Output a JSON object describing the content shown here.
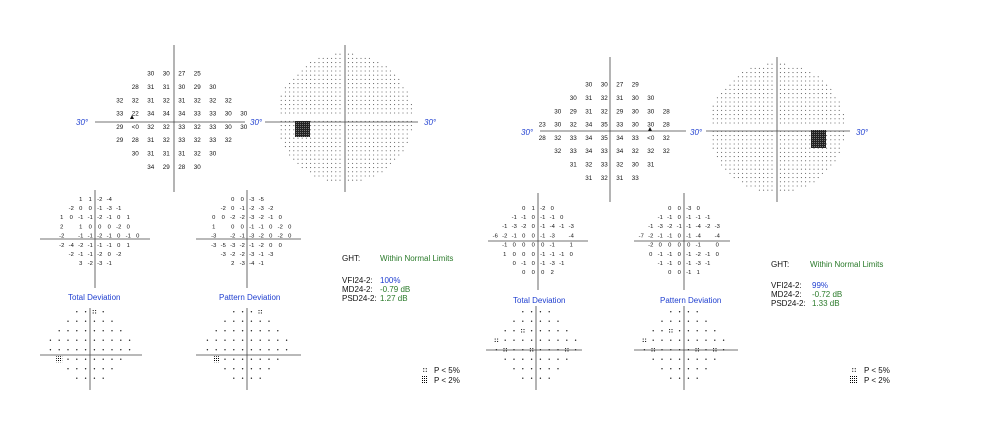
{
  "axis_label": "30°",
  "legend": {
    "p5": "P < 5%",
    "p2": "P < 2%"
  },
  "left": {
    "threshold": [
      [
        "",
        "",
        "",
        "30",
        "30",
        "27",
        "25",
        "",
        "",
        ""
      ],
      [
        "",
        "",
        "28",
        "31",
        "31",
        "30",
        "29",
        "30",
        "",
        ""
      ],
      [
        "",
        "32",
        "32",
        "31",
        "32",
        "31",
        "32",
        "32",
        "32",
        ""
      ],
      [
        "",
        "33",
        "22",
        "34",
        "34",
        "34",
        "33",
        "33",
        "30",
        "30"
      ],
      [
        "",
        "29",
        "<0",
        "32",
        "32",
        "33",
        "32",
        "33",
        "30",
        "30"
      ],
      [
        "",
        "29",
        "28",
        "31",
        "32",
        "33",
        "32",
        "33",
        "32",
        ""
      ],
      [
        "",
        "",
        "30",
        "31",
        "31",
        "31",
        "32",
        "30",
        "",
        ""
      ],
      [
        "",
        "",
        "",
        "34",
        "29",
        "28",
        "30",
        "",
        "",
        ""
      ]
    ],
    "total_dev": [
      [
        "",
        "",
        "",
        "1",
        "1",
        "-2",
        "-4",
        "",
        "",
        ""
      ],
      [
        "",
        "",
        "-2",
        "0",
        "0",
        "-1",
        "-3",
        "-1",
        "",
        ""
      ],
      [
        "",
        "1",
        "0",
        "-1",
        "-1",
        "-2",
        "-1",
        "0",
        "1",
        ""
      ],
      [
        "",
        "2",
        "",
        "1",
        "0",
        "0",
        "0",
        "-2",
        "0",
        ""
      ],
      [
        "",
        "-2",
        "",
        "-1",
        "-1",
        "-2",
        "-1",
        "0",
        "-1",
        "0"
      ],
      [
        "",
        "-2",
        "-4",
        "-2",
        "-1",
        "-1",
        "-1",
        "0",
        "1",
        ""
      ],
      [
        "",
        "",
        "-2",
        "-1",
        "-1",
        "-2",
        "0",
        "-2",
        "",
        ""
      ],
      [
        "",
        "",
        "",
        "3",
        "-2",
        "-3",
        "-1",
        "",
        "",
        ""
      ]
    ],
    "pattern_dev": [
      [
        "",
        "",
        "",
        "0",
        "0",
        "-3",
        "-5",
        "",
        "",
        ""
      ],
      [
        "",
        "",
        "-2",
        "0",
        "-1",
        "-2",
        "-3",
        "-2",
        "",
        ""
      ],
      [
        "",
        "0",
        "0",
        "-2",
        "-2",
        "-3",
        "-2",
        "-1",
        "0",
        ""
      ],
      [
        "",
        "1",
        "",
        "0",
        "0",
        "-1",
        "-1",
        "0",
        "-2",
        "0"
      ],
      [
        "",
        "-3",
        "",
        "-2",
        "-1",
        "-3",
        "-2",
        "0",
        "-2",
        "0"
      ],
      [
        "",
        "-3",
        "-5",
        "-3",
        "-2",
        "-1",
        "-2",
        "0",
        "0",
        ""
      ],
      [
        "",
        "",
        "-3",
        "-2",
        "-2",
        "-3",
        "-1",
        "-3",
        "",
        ""
      ],
      [
        "",
        "",
        "",
        "2",
        "-3",
        "-4",
        "-1",
        "",
        "",
        ""
      ]
    ],
    "td_title": "Total Deviation",
    "pd_title": "Pattern Deviation",
    "ght_label": "GHT:",
    "ght_value": "Within Normal Limits",
    "vfi_label": "VFI24-2:",
    "vfi_value": "100%",
    "md_label": "MD24-2:",
    "md_value": "-0.79 dB",
    "psd_label": "PSD24-2:",
    "psd_value": "1.27 dB"
  },
  "right": {
    "threshold": [
      [
        "",
        "",
        "",
        "30",
        "30",
        "27",
        "29",
        "",
        "",
        ""
      ],
      [
        "",
        "",
        "30",
        "31",
        "32",
        "31",
        "30",
        "30",
        "",
        ""
      ],
      [
        "",
        "30",
        "29",
        "31",
        "32",
        "29",
        "30",
        "30",
        "28",
        ""
      ],
      [
        "23",
        "30",
        "32",
        "34",
        "35",
        "33",
        "30",
        "30",
        "28",
        ""
      ],
      [
        "28",
        "32",
        "33",
        "34",
        "35",
        "34",
        "33",
        "<0",
        "32",
        ""
      ],
      [
        "",
        "32",
        "33",
        "34",
        "33",
        "34",
        "32",
        "32",
        "32",
        ""
      ],
      [
        "",
        "",
        "31",
        "32",
        "33",
        "32",
        "30",
        "31",
        "",
        ""
      ],
      [
        "",
        "",
        "",
        "31",
        "32",
        "31",
        "33",
        "",
        "",
        ""
      ]
    ],
    "total_dev": [
      [
        "",
        "",
        "",
        "0",
        "1",
        "-2",
        "0",
        "",
        "",
        ""
      ],
      [
        "",
        "",
        "-1",
        "-1",
        "0",
        "-1",
        "-1",
        "0",
        "",
        ""
      ],
      [
        "",
        "-1",
        "-3",
        "-2",
        "0",
        "-1",
        "-4",
        "-1",
        "-3",
        ""
      ],
      [
        "-6",
        "-2",
        "-1",
        "0",
        "0",
        "-1",
        "-3",
        "",
        "-4",
        ""
      ],
      [
        "",
        "-1",
        "0",
        "0",
        "0",
        "0",
        "-1",
        "",
        "1",
        ""
      ],
      [
        "",
        "1",
        "0",
        "0",
        "0",
        "-1",
        "-1",
        "-1",
        "0",
        ""
      ],
      [
        "",
        "",
        "0",
        "-1",
        "0",
        "-1",
        "-3",
        "-1",
        "",
        ""
      ],
      [
        "",
        "",
        "",
        "0",
        "0",
        "0",
        "2",
        "",
        "",
        ""
      ]
    ],
    "pattern_dev": [
      [
        "",
        "",
        "",
        "0",
        "0",
        "-3",
        "0",
        "",
        "",
        ""
      ],
      [
        "",
        "",
        "-1",
        "-1",
        "0",
        "-1",
        "-1",
        "-1",
        "",
        ""
      ],
      [
        "",
        "-1",
        "-3",
        "-2",
        "-1",
        "-1",
        "-4",
        "-2",
        "-3",
        ""
      ],
      [
        "-7",
        "-2",
        "-1",
        "-1",
        "0",
        "-1",
        "-4",
        "",
        "-4",
        ""
      ],
      [
        "",
        "-2",
        "0",
        "0",
        "0",
        "0",
        "-1",
        "",
        "0",
        ""
      ],
      [
        "",
        "0",
        "-1",
        "-1",
        "0",
        "-1",
        "-2",
        "-1",
        "0",
        ""
      ],
      [
        "",
        "",
        "-1",
        "-1",
        "0",
        "-1",
        "-3",
        "-1",
        "",
        ""
      ],
      [
        "",
        "",
        "",
        "0",
        "0",
        "-1",
        "1",
        "",
        "",
        ""
      ]
    ],
    "td_title": "Total Deviation",
    "pd_title": "Pattern Deviation",
    "ght_label": "GHT:",
    "ght_value": "Within Normal Limits",
    "vfi_label": "VFI24-2:",
    "vfi_value": "99%",
    "md_label": "MD24-2:",
    "md_value": "-0.72 dB",
    "psd_label": "PSD24-2:",
    "psd_value": "1.33 dB"
  }
}
